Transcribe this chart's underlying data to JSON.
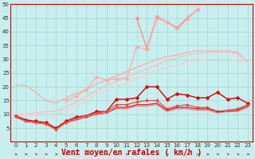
{
  "x": [
    0,
    1,
    2,
    3,
    4,
    5,
    6,
    7,
    8,
    9,
    10,
    11,
    12,
    13,
    14,
    15,
    16,
    17,
    18,
    19,
    20,
    21,
    22,
    23
  ],
  "background_color": "#c8eeee",
  "grid_color": "#a0d8d8",
  "xlabel": "Vent moyen/en rafales ( km/h )",
  "xlabel_color": "#cc0000",
  "xlim": [
    -0.5,
    23.5
  ],
  "ylim": [
    0,
    50
  ],
  "yticks": [
    0,
    5,
    10,
    15,
    20,
    25,
    30,
    35,
    40,
    45,
    50
  ],
  "lines": [
    {
      "y": [
        20.5,
        20.5,
        18.0,
        15.0,
        14.0,
        16.0,
        17.5,
        19.0,
        21.0,
        22.5,
        24.0,
        25.5,
        27.0,
        28.5,
        30.0,
        31.0,
        31.5,
        32.5,
        33.0,
        33.0,
        33.0,
        33.0,
        32.5,
        29.0
      ],
      "color": "#ffaaaa",
      "linewidth": 0.9,
      "marker": null,
      "markersize": 0
    },
    {
      "y": [
        10.0,
        10.0,
        10.5,
        11.0,
        11.0,
        12.5,
        14.5,
        16.5,
        18.5,
        20.5,
        22.0,
        23.5,
        25.0,
        26.5,
        28.0,
        29.5,
        30.5,
        31.5,
        32.0,
        32.5,
        32.5,
        32.5,
        32.0,
        29.0
      ],
      "color": "#ffbbbb",
      "linewidth": 0.9,
      "marker": null,
      "markersize": 0
    },
    {
      "y": [
        10.0,
        10.0,
        10.0,
        10.0,
        10.0,
        11.0,
        13.0,
        15.0,
        17.0,
        18.5,
        20.0,
        21.5,
        23.0,
        24.5,
        26.0,
        27.0,
        28.0,
        29.0,
        29.5,
        30.0,
        30.0,
        30.0,
        29.5,
        29.0
      ],
      "color": "#ffcccc",
      "linewidth": 0.9,
      "marker": null,
      "markersize": 0
    },
    {
      "y": [
        null,
        null,
        null,
        null,
        null,
        null,
        null,
        null,
        null,
        null,
        null,
        null,
        45.0,
        34.0,
        45.5,
        43.5,
        41.5,
        45.0,
        48.0,
        null,
        null,
        null,
        null,
        null
      ],
      "color": "#ff8888",
      "linewidth": 0.9,
      "marker": "D",
      "markersize": 2.5
    },
    {
      "y": [
        null,
        null,
        null,
        null,
        null,
        15.0,
        16.5,
        19.0,
        23.5,
        22.5,
        23.0,
        23.0,
        34.5,
        33.5,
        45.0,
        43.5,
        41.0,
        44.5,
        48.0,
        null,
        null,
        null,
        null,
        null
      ],
      "color": "#ffaaaa",
      "linewidth": 0.9,
      "marker": "D",
      "markersize": 2.5
    },
    {
      "y": [
        9.5,
        8.0,
        7.5,
        7.0,
        5.0,
        7.5,
        9.0,
        9.5,
        11.0,
        11.0,
        15.5,
        15.5,
        16.0,
        20.0,
        20.0,
        15.5,
        17.5,
        17.0,
        16.0,
        16.0,
        18.0,
        15.5,
        16.0,
        14.0
      ],
      "color": "#dd0000",
      "linewidth": 1.0,
      "marker": "D",
      "markersize": 2.5
    },
    {
      "y": [
        9.5,
        7.5,
        7.0,
        6.5,
        4.5,
        7.0,
        8.5,
        9.5,
        10.5,
        11.0,
        13.5,
        13.5,
        14.5,
        15.0,
        15.0,
        12.0,
        13.0,
        13.5,
        12.5,
        12.5,
        11.0,
        11.5,
        12.0,
        13.5
      ],
      "color": "#ee4444",
      "linewidth": 0.9,
      "marker": "D",
      "markersize": 2.0
    },
    {
      "y": [
        9.0,
        7.5,
        7.0,
        6.5,
        4.5,
        7.0,
        8.0,
        9.0,
        10.0,
        10.5,
        12.5,
        12.5,
        13.5,
        13.5,
        14.0,
        11.5,
        12.5,
        12.5,
        12.0,
        12.0,
        11.0,
        11.0,
        11.5,
        13.0
      ],
      "color": "#cc2222",
      "linewidth": 0.9,
      "marker": null,
      "markersize": 0
    },
    {
      "y": [
        9.0,
        7.5,
        7.0,
        6.5,
        4.5,
        7.0,
        8.0,
        9.0,
        10.0,
        10.5,
        12.0,
        12.0,
        13.0,
        13.0,
        13.5,
        11.0,
        12.0,
        12.0,
        11.5,
        11.5,
        10.5,
        11.0,
        11.0,
        12.5
      ],
      "color": "#ff6666",
      "linewidth": 0.7,
      "marker": null,
      "markersize": 0
    }
  ],
  "arrow_color": "#cc2222",
  "axis_label_fontsize": 7,
  "tick_fontsize": 5
}
